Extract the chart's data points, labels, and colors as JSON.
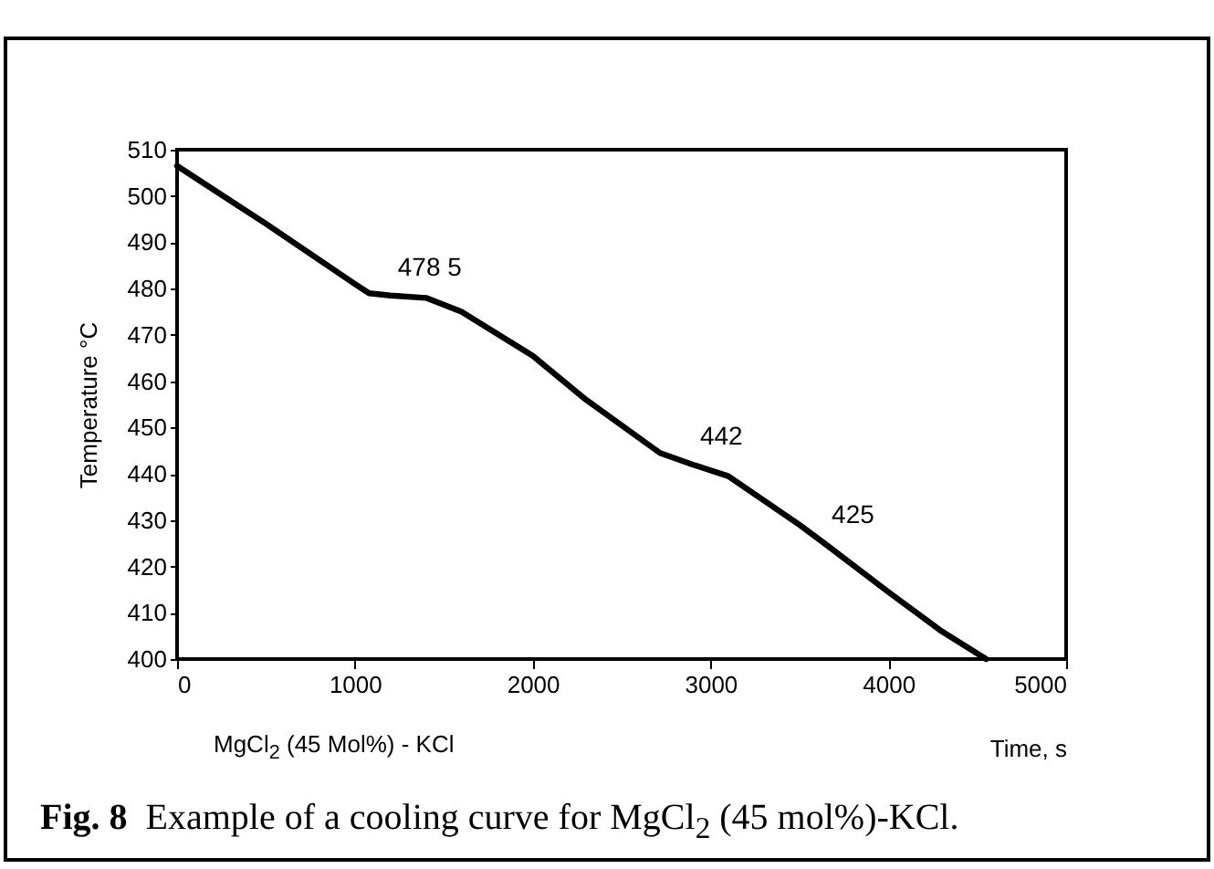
{
  "chart_data": {
    "type": "line",
    "title": "Fig. 8  Example of a cooling curve for MgCl$_{2}$ (45 mol%)-KCl.",
    "xlabel": "Time, s",
    "ylabel": "Temperature °C",
    "x": [
      0,
      500,
      1000,
      1080,
      1200,
      1400,
      1600,
      2000,
      2300,
      2716,
      2900,
      3100,
      3500,
      3640,
      4000,
      4300,
      4550
    ],
    "series": [
      {
        "color": "#000000",
        "values": [
          506.5,
          494,
          481,
          479,
          478.5,
          478,
          475,
          465.5,
          456,
          444.5,
          442,
          439.5,
          429,
          425,
          414.5,
          406,
          400
        ]
      }
    ],
    "xlim": [
      0,
      5000
    ],
    "ylim": [
      400,
      510
    ],
    "xticks": [
      0,
      1000,
      2000,
      3000,
      4000,
      5000
    ],
    "yticks": [
      400,
      410,
      420,
      430,
      440,
      450,
      460,
      470,
      480,
      490,
      500,
      510
    ],
    "annotations": [
      {
        "text": "478 5",
        "x": 1200,
        "y": 478.5
      },
      {
        "text": "442",
        "x": 2900,
        "y": 442
      },
      {
        "text": "425",
        "x": 3640,
        "y": 425
      },
      "MgCl$_{2}$ (45 Mol%) - KCl"
    ],
    "grid": false,
    "legend": false,
    "marker": "none",
    "line_style": "solid"
  }
}
